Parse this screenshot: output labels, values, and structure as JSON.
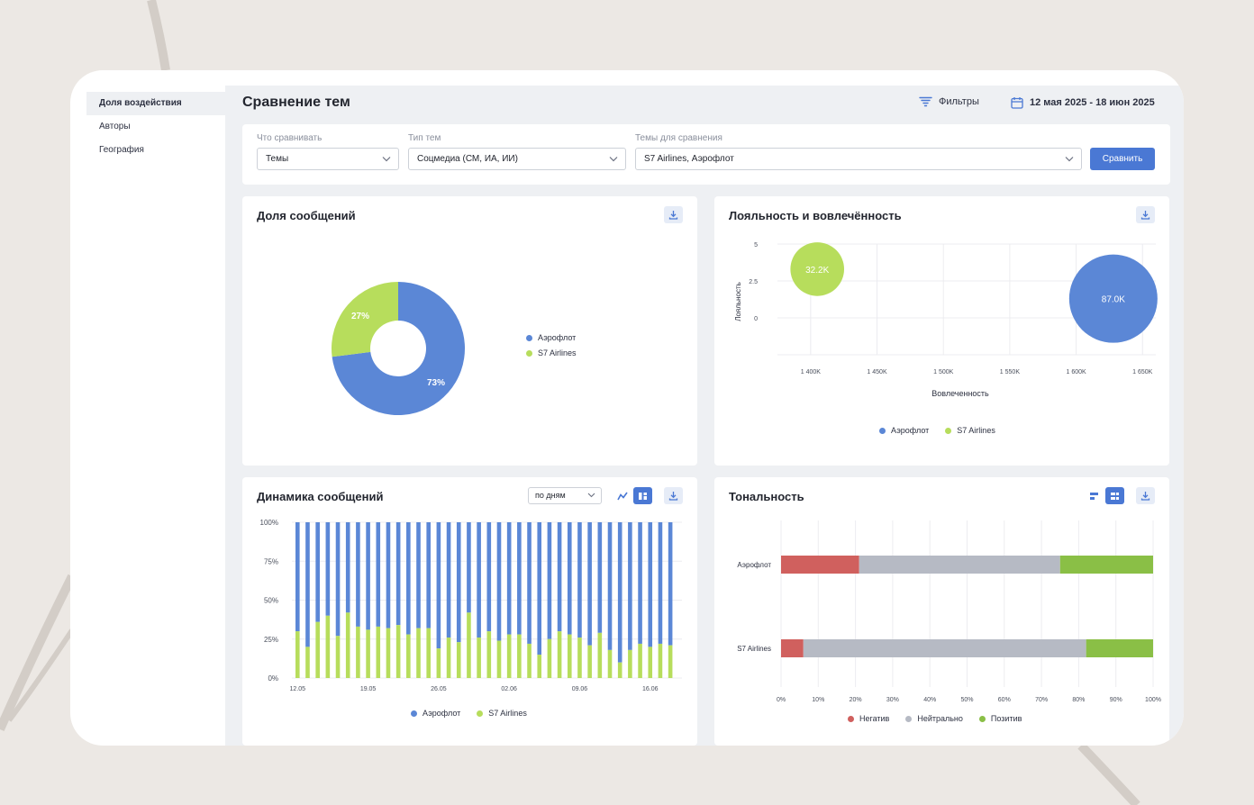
{
  "page": {
    "title": "Сравнение тем"
  },
  "sidebar": {
    "items": [
      {
        "label": "Доля воздействия",
        "active": true
      },
      {
        "label": "Авторы",
        "active": false
      },
      {
        "label": "География",
        "active": false
      }
    ]
  },
  "header": {
    "filters_label": "Фильтры",
    "date_range": "12 мая 2025 - 18 июн 2025"
  },
  "filters": {
    "compare_what": {
      "label": "Что сравнивать",
      "value": "Темы"
    },
    "topic_type": {
      "label": "Тип тем",
      "value": "Соцмедиа (СМ, ИА, ИИ)"
    },
    "topics": {
      "label": "Темы для сравнения",
      "value": "S7 Airlines, Аэрофлот"
    },
    "compare_button": "Сравнить"
  },
  "colors": {
    "aeroflot": "#5b87d6",
    "s7": "#b7dd5c",
    "negative": "#d0605e",
    "neutral": "#b6bac4",
    "positive": "#8abf46",
    "accent": "#4a78d4"
  },
  "cards": {
    "share": {
      "title": "Доля сообщений",
      "chart_data": {
        "type": "pie",
        "title": "Доля сообщений",
        "labels": [
          "Аэрофлот",
          "S7 Airlines"
        ],
        "values": [
          73,
          27
        ],
        "value_labels": [
          "73%",
          "27%"
        ],
        "legend": [
          "Аэрофлот",
          "S7 Airlines"
        ],
        "legend_position": "right"
      }
    },
    "loyalty": {
      "title": "Лояльность и вовлечённость",
      "chart_data": {
        "type": "scatter",
        "title": "Лояльность и вовлечённость",
        "xlabel": "Вовлеченность",
        "ylabel": "Лояльность",
        "xlim": [
          1375000,
          1660000
        ],
        "ylim": [
          -2.5,
          5
        ],
        "x_ticks": [
          "1 400K",
          "1 450K",
          "1 500K",
          "1 550K",
          "1 600K",
          "1 650K"
        ],
        "x_tick_values": [
          1400000,
          1450000,
          1500000,
          1550000,
          1600000,
          1650000
        ],
        "y_ticks": [
          "5",
          "2.5",
          "0"
        ],
        "y_tick_values": [
          5,
          2.5,
          0
        ],
        "series": [
          {
            "name": "Аэрофлот",
            "x": [
              1628000
            ],
            "y": [
              1.3
            ],
            "size": [
              87000
            ],
            "label": "87.0K"
          },
          {
            "name": "S7 Airlines",
            "x": [
              1405000
            ],
            "y": [
              3.3
            ],
            "size": [
              32200
            ],
            "label": "32.2K"
          }
        ],
        "legend": [
          "Аэрофлот",
          "S7 Airlines"
        ],
        "legend_position": "bottom",
        "grid": true
      }
    },
    "dynamics": {
      "title": "Динамика сообщений",
      "period": "по дням",
      "chart_data": {
        "type": "bar",
        "stacked": true,
        "title": "Динамика сообщений",
        "ylim": [
          0,
          100
        ],
        "y_ticks": [
          "100%",
          "75%",
          "50%",
          "25%",
          "0%"
        ],
        "y_tick_values": [
          100,
          75,
          50,
          25,
          0
        ],
        "x_tick_labels": [
          "12.05",
          "19.05",
          "26.05",
          "02.06",
          "09.06",
          "16.06"
        ],
        "x_tick_indices": [
          0,
          7,
          14,
          21,
          28,
          35
        ],
        "categories": [
          "12.05",
          "13.05",
          "14.05",
          "15.05",
          "16.05",
          "17.05",
          "18.05",
          "19.05",
          "20.05",
          "21.05",
          "22.05",
          "23.05",
          "24.05",
          "25.05",
          "26.05",
          "27.05",
          "28.05",
          "29.05",
          "30.05",
          "31.05",
          "01.06",
          "02.06",
          "03.06",
          "04.06",
          "05.06",
          "06.06",
          "07.06",
          "08.06",
          "09.06",
          "10.06",
          "11.06",
          "12.06",
          "13.06",
          "14.06",
          "15.06",
          "16.06",
          "17.06",
          "18.06"
        ],
        "series": [
          {
            "name": "S7 Airlines",
            "values": [
              30,
              20,
              36,
              40,
              27,
              42,
              33,
              31,
              33,
              32,
              34,
              28,
              32,
              32,
              19,
              26,
              23,
              42,
              26,
              30,
              24,
              28,
              28,
              22,
              15,
              25,
              30,
              28,
              26,
              21,
              29,
              18,
              10,
              18,
              22,
              20,
              22,
              21
            ]
          },
          {
            "name": "Аэрофлот",
            "values": [
              70,
              80,
              64,
              60,
              73,
              58,
              67,
              69,
              67,
              68,
              66,
              72,
              68,
              68,
              81,
              74,
              77,
              58,
              74,
              70,
              76,
              72,
              72,
              78,
              85,
              75,
              70,
              72,
              74,
              79,
              71,
              82,
              90,
              82,
              78,
              80,
              78,
              79
            ]
          }
        ],
        "legend": [
          "Аэрофлот",
          "S7 Airlines"
        ],
        "legend_position": "bottom",
        "grid": true
      }
    },
    "tonality": {
      "title": "Тональность",
      "chart_data": {
        "type": "bar",
        "orientation": "horizontal",
        "stacked": true,
        "title": "Тональность",
        "categories": [
          "Аэрофлот",
          "S7 Airlines"
        ],
        "xlim": [
          0,
          100
        ],
        "x_ticks": [
          "0%",
          "10%",
          "20%",
          "30%",
          "40%",
          "50%",
          "60%",
          "70%",
          "80%",
          "90%",
          "100%"
        ],
        "x_tick_values": [
          0,
          10,
          20,
          30,
          40,
          50,
          60,
          70,
          80,
          90,
          100
        ],
        "series": [
          {
            "name": "Негатив",
            "values": [
              21,
              6
            ]
          },
          {
            "name": "Нейтрально",
            "values": [
              54,
              76
            ]
          },
          {
            "name": "Позитив",
            "values": [
              25,
              18
            ]
          }
        ],
        "legend": [
          "Негатив",
          "Нейтрально",
          "Позитив"
        ],
        "legend_position": "bottom",
        "grid": true
      }
    }
  }
}
